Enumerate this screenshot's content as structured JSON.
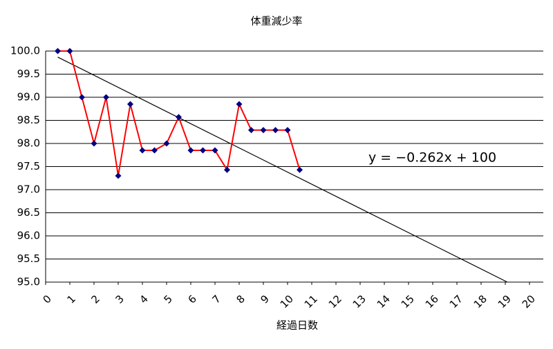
{
  "chart_data": {
    "type": "line",
    "title": "体重減少率",
    "x_label": "経過日数",
    "x": [
      0.5,
      1,
      1.5,
      2,
      2.5,
      3,
      3.5,
      4,
      4.5,
      5,
      5.5,
      6,
      6.5,
      7,
      7.5,
      8,
      8.5,
      9,
      9.5,
      10,
      10.5
    ],
    "series": [
      {
        "color": "#ff0000",
        "marker_color": "#000080",
        "values": [
          100,
          100,
          99.0,
          98.0,
          99.0,
          97.3,
          98.85,
          97.85,
          97.85,
          98.0,
          98.57,
          97.85,
          97.85,
          97.85,
          97.43,
          98.85,
          98.29,
          98.29,
          98.29,
          98.29,
          97.43
        ]
      }
    ],
    "trendline": {
      "slope": -0.262,
      "intercept": 100,
      "label": "y = −0.262x + 100",
      "color": "#000000"
    },
    "xlim": [
      0,
      20
    ],
    "ylim": [
      95,
      100
    ],
    "xticks": [
      0,
      1,
      2,
      3,
      4,
      5,
      6,
      7,
      8,
      9,
      10,
      11,
      12,
      13,
      14,
      15,
      16,
      17,
      18,
      19,
      20
    ],
    "yticks": [
      {
        "value": 95,
        "label": "95.0"
      },
      95.5,
      {
        "value": 96,
        "label": "96.0"
      },
      96.5,
      {
        "value": 97,
        "label": "97.0"
      },
      97.5,
      {
        "value": 98,
        "label": "98.0"
      },
      98.5,
      {
        "value": 99,
        "label": "99.0"
      },
      99.5,
      {
        "value": 100,
        "label": "100.0"
      }
    ],
    "grid": true
  }
}
